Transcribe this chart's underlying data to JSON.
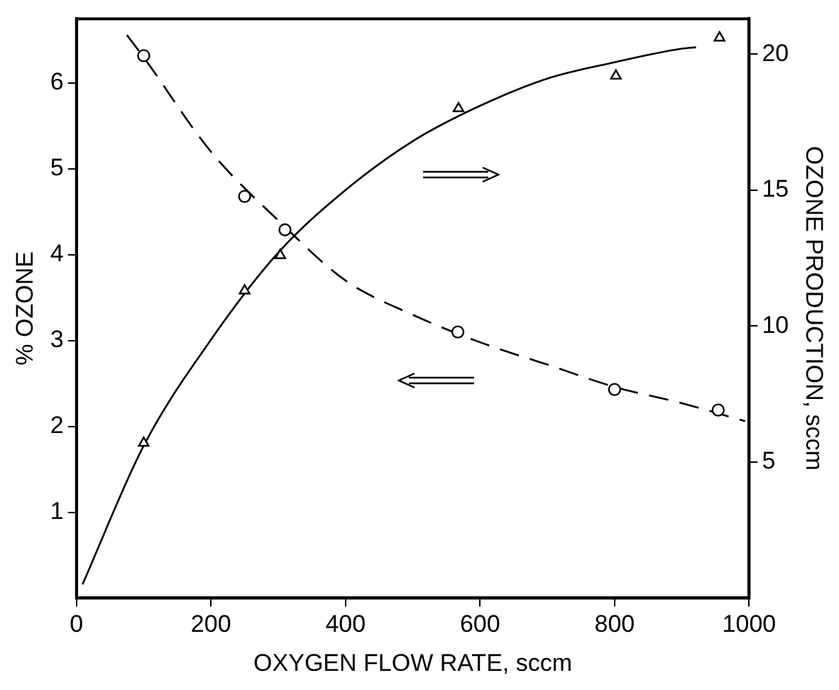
{
  "chart_data": {
    "type": "scatter",
    "xlabel": "OXYGEN FLOW RATE, sccm",
    "ylabel": "% OZONE",
    "y2label": "OZONE PRODUCTION, sccm",
    "xlim": [
      0,
      1000
    ],
    "xticks": [
      0,
      200,
      400,
      600,
      800,
      1000
    ],
    "ylim": [
      0,
      6.75
    ],
    "yticks": [
      1,
      2,
      3,
      4,
      5,
      6
    ],
    "y2lim": [
      0,
      21.3
    ],
    "y2ticks": [
      5,
      10,
      15,
      20
    ],
    "grid": false,
    "legend": false,
    "series": [
      {
        "color": "#000000",
        "marker": "circle",
        "x": [
          100,
          250,
          310,
          567,
          800,
          954
        ],
        "values": [
          6.32,
          4.68,
          4.29,
          3.1,
          2.43,
          2.19
        ]
      },
      {
        "type": "line",
        "color": "#000000",
        "marker": "none",
        "line_style": "dashed",
        "x": [
          75,
          100,
          200,
          300,
          400,
          500,
          600,
          700,
          800,
          900,
          994
        ],
        "values": [
          6.56,
          6.3,
          5.2,
          4.4,
          3.7,
          3.3,
          2.98,
          2.72,
          2.46,
          2.27,
          2.06
        ]
      },
      {
        "axis": "y2",
        "color": "#000000",
        "marker": "triangle",
        "x": [
          100,
          250,
          303,
          568,
          802,
          956
        ],
        "values": [
          5.7,
          11.3,
          12.6,
          18.0,
          19.2,
          20.6
        ]
      },
      {
        "type": "line",
        "axis": "y2",
        "color": "#000000",
        "marker": "none",
        "line_style": "solid",
        "x": [
          9,
          100,
          200,
          300,
          400,
          500,
          600,
          700,
          800,
          900,
          921
        ],
        "values": [
          0.5,
          5.6,
          9.5,
          12.7,
          15.0,
          16.8,
          18.1,
          19.1,
          19.7,
          20.2,
          20.25
        ]
      }
    ]
  }
}
